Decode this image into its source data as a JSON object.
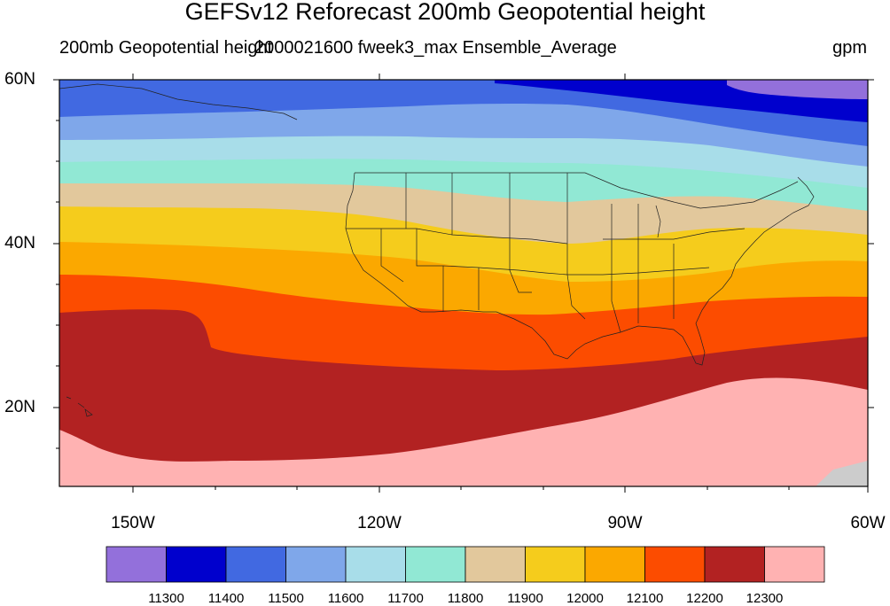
{
  "title": "GEFSv12 Reforecast 200mb Geopotential height",
  "subtitle_left": "200mb Geopotential height",
  "subtitle_center": "2000021600 fweek3_max Ensemble_Average",
  "units": "gpm",
  "lat_labels": [
    "60N",
    "40N",
    "20N"
  ],
  "lon_labels": [
    "150W",
    "120W",
    "90W",
    "60W"
  ],
  "colorbar": {
    "levels": [
      "11300",
      "11400",
      "11500",
      "11600",
      "11700",
      "11800",
      "11900",
      "12000",
      "12100",
      "12200",
      "12300"
    ],
    "colors": [
      "#9370db",
      "#0000cd",
      "#4169e1",
      "#7fa7ea",
      "#a8dde9",
      "#91e8d4",
      "#e2c89c",
      "#f5cc1c",
      "#fba800",
      "#fc4c00",
      "#b22222",
      "#ffb2b2"
    ]
  },
  "chart_data": {
    "type": "heatmap",
    "variable": "200mb Geopotential height",
    "units": "gpm",
    "x_range": [
      "160W",
      "60W"
    ],
    "y_range": [
      "10N",
      "60N"
    ],
    "contour_levels": [
      11300,
      11400,
      11500,
      11600,
      11700,
      11800,
      11900,
      12000,
      12100,
      12200,
      12300
    ],
    "fill_colors": [
      "#9370db",
      "#0000cd",
      "#4169e1",
      "#7fa7ea",
      "#a8dde9",
      "#91e8d4",
      "#e2c89c",
      "#f5cc1c",
      "#fba800",
      "#fc4c00",
      "#b22222",
      "#ffb2b2"
    ]
  }
}
